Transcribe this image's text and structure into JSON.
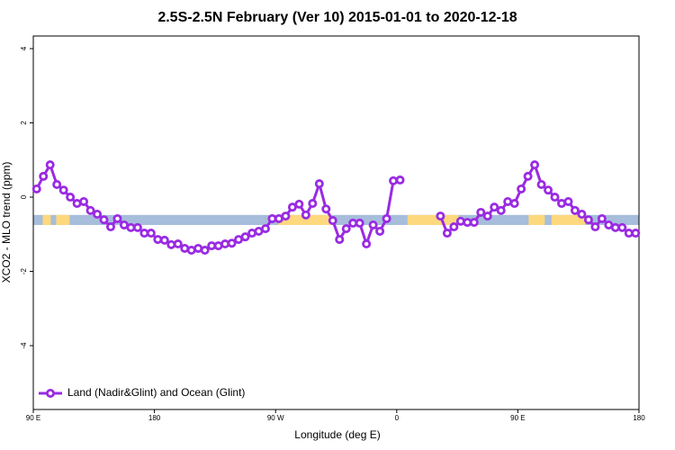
{
  "chart_data": {
    "type": "line",
    "title": "2.5S-2.5N February (Ver 10)   2015-01-01 to 2020-12-18",
    "x_label": "Longitude (deg E)",
    "y_label": "XCO2 - MLO trend (ppm)",
    "xlim": [
      90,
      540
    ],
    "xticks": [
      {
        "value": 90,
        "label": "90 E"
      },
      {
        "value": 180,
        "label": "180"
      },
      {
        "value": 270,
        "label": "90 W"
      },
      {
        "value": 360,
        "label": "0"
      },
      {
        "value": 450,
        "label": "90 E"
      },
      {
        "value": 540,
        "label": "180"
      }
    ],
    "ylim": [
      -5.72,
      4.34
    ],
    "yticks": [
      -4,
      -2,
      0,
      2,
      4
    ],
    "legend": "bottom-left",
    "band": {
      "ylim": [
        -0.75,
        -0.48
      ],
      "color": "#a6bddb",
      "land_color": "#fdd87d",
      "land": [
        [
          97,
          103
        ],
        [
          107,
          117
        ],
        [
          272,
          312
        ],
        [
          368,
          406
        ],
        [
          458,
          470
        ],
        [
          475,
          500
        ]
      ]
    },
    "x": [
      92.5,
      97.5,
      102.5,
      107.5,
      112.5,
      117.5,
      122.5,
      127.5,
      132.5,
      137.5,
      142.5,
      147.5,
      152.5,
      157.5,
      162.5,
      167.5,
      172.5,
      177.5,
      182.5,
      187.5,
      192.5,
      197.5,
      202.5,
      207.5,
      212.5,
      217.5,
      222.5,
      227.5,
      232.5,
      237.5,
      242.5,
      247.5,
      252.5,
      257.5,
      262.5,
      267.5,
      272.5,
      277.5,
      282.5,
      287.5,
      292.5,
      297.5,
      302.5,
      307.5,
      312.5,
      317.5,
      322.5,
      327.5,
      332.5,
      337.5,
      342.5,
      347.5,
      352.5,
      357.5,
      362.5,
      367.5,
      372.5,
      377.5,
      382.5,
      387.5,
      392.5,
      397.5,
      402.5,
      407.5,
      412.5,
      417.5,
      422.5,
      427.5,
      432.5,
      437.5,
      442.5,
      447.5,
      452.5,
      457.5,
      462.5,
      467.5,
      472.5,
      477.5,
      482.5,
      487.5,
      492.5,
      497.5,
      502.5,
      507.5,
      512.5,
      517.5,
      522.5,
      527.5,
      532.5,
      537.5
    ],
    "series": [
      {
        "name": "Land (Nadir&Glint) and Ocean (Glint)",
        "color": "#9a2be2",
        "values": [
          0.22,
          0.56,
          0.87,
          0.34,
          0.19,
          0,
          -0.17,
          -0.12,
          -0.36,
          -0.46,
          -0.61,
          -0.8,
          -0.58,
          -0.75,
          -0.82,
          -0.82,
          -0.97,
          -0.97,
          -1.14,
          -1.16,
          -1.28,
          -1.26,
          -1.38,
          -1.43,
          -1.38,
          -1.43,
          -1.31,
          -1.31,
          -1.26,
          -1.24,
          -1.14,
          -1.07,
          -0.97,
          -0.92,
          -0.85,
          -0.58,
          -0.58,
          -0.51,
          -0.27,
          -0.19,
          -0.48,
          -0.17,
          0.36,
          -0.32,
          -0.63,
          -1.14,
          -0.85,
          -0.7,
          -0.7,
          -1.26,
          -0.75,
          -0.92,
          -0.58,
          0.44,
          0.46,
          null,
          null,
          null,
          null,
          null,
          -0.51,
          -0.97,
          -0.8,
          -0.65,
          -0.68,
          -0.68,
          -0.41,
          -0.51,
          -0.27,
          -0.36,
          -0.12,
          -0.17,
          0.22,
          0.56,
          0.87,
          0.34,
          0.19,
          0,
          -0.17,
          -0.12,
          -0.36,
          -0.46,
          -0.61,
          -0.8,
          -0.58,
          -0.75,
          -0.82,
          -0.82,
          -0.97,
          -0.97
        ]
      }
    ]
  }
}
